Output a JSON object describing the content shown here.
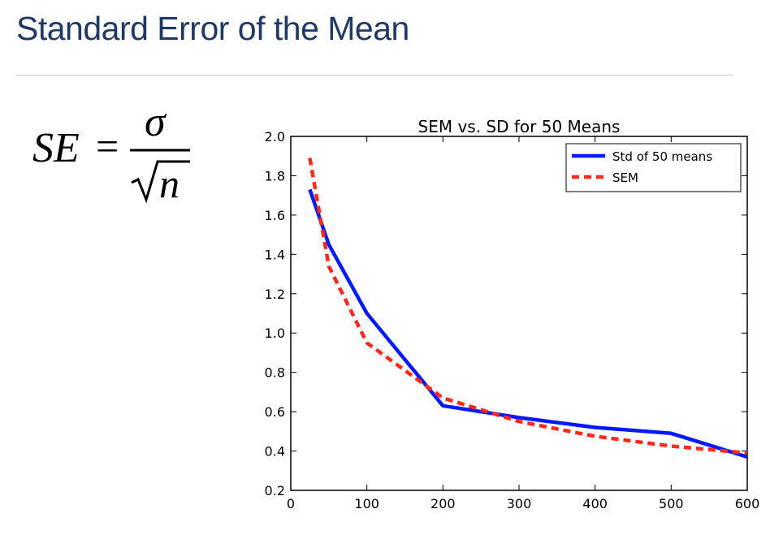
{
  "slide": {
    "title": "Standard Error of the Mean"
  },
  "formula": {
    "lhs": "SE",
    "equals": "=",
    "numerator": "σ",
    "denominator": "n"
  },
  "chart_data": {
    "type": "line",
    "title": "SEM vs. SD for 50 Means",
    "xlabel": "",
    "ylabel": "",
    "xlim": [
      0,
      600
    ],
    "ylim": [
      0.2,
      2.0
    ],
    "xticks": [
      0,
      100,
      200,
      300,
      400,
      500,
      600
    ],
    "yticks": [
      0.2,
      0.4,
      0.6,
      0.8,
      1.0,
      1.2,
      1.4,
      1.6,
      1.8,
      2.0
    ],
    "ytick_labels": [
      "0.2",
      "0.4",
      "0.6",
      "0.8",
      "1.0",
      "1.2",
      "1.4",
      "1.6",
      "1.8",
      "2.0"
    ],
    "grid": false,
    "legend_position": "top-right",
    "series": [
      {
        "name": "Std of 50 means",
        "color": "#0019ff",
        "style": "solid",
        "x": [
          25,
          50,
          100,
          200,
          300,
          400,
          500,
          600
        ],
        "y": [
          1.73,
          1.45,
          1.1,
          0.63,
          0.57,
          0.52,
          0.49,
          0.37
        ]
      },
      {
        "name": "SEM",
        "color": "#ff2a1a",
        "style": "dashed",
        "x": [
          25,
          50,
          100,
          200,
          300,
          400,
          500,
          600
        ],
        "y": [
          1.89,
          1.34,
          0.95,
          0.67,
          0.55,
          0.475,
          0.425,
          0.39
        ]
      }
    ]
  }
}
